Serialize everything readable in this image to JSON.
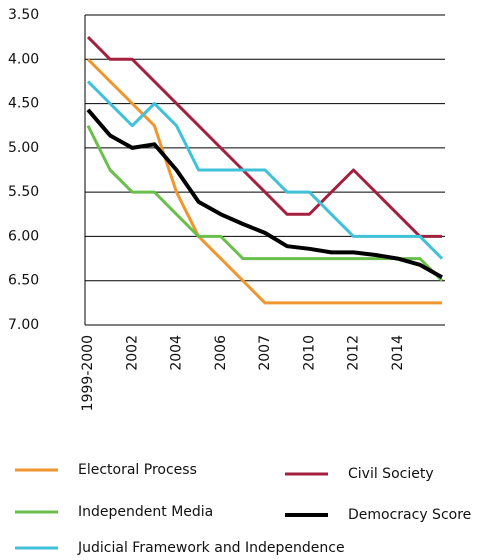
{
  "chart_data": {
    "type": "line",
    "categories": [
      "1999-2000",
      null,
      "2002",
      null,
      "2004",
      null,
      "2006",
      null,
      "2007",
      null,
      "2010",
      null,
      "2012",
      null,
      "2014",
      null,
      null
    ],
    "series": [
      {
        "name": "Electoral Process",
        "color": "#f0962e",
        "values": [
          4.0,
          4.25,
          4.5,
          4.75,
          5.5,
          6.0,
          6.25,
          6.5,
          6.75,
          6.75,
          6.75,
          6.75,
          6.75,
          6.75,
          6.75,
          6.75,
          6.75
        ]
      },
      {
        "name": "Civil Society",
        "color": "#a3203f",
        "values": [
          3.75,
          4.0,
          4.0,
          4.25,
          4.5,
          4.75,
          5.0,
          5.25,
          5.5,
          5.75,
          5.75,
          5.5,
          5.25,
          5.5,
          5.75,
          6.0,
          6.0
        ]
      },
      {
        "name": "Independent Media",
        "color": "#6abf4b",
        "values": [
          4.75,
          5.25,
          5.5,
          5.5,
          5.75,
          6.0,
          6.0,
          6.25,
          6.25,
          6.25,
          6.25,
          6.25,
          6.25,
          6.25,
          6.25,
          6.25,
          6.5
        ]
      },
      {
        "name": "Democracy Score",
        "color": "#000000",
        "values": [
          4.57,
          4.86,
          5.0,
          4.96,
          5.25,
          5.61,
          5.75,
          5.86,
          5.96,
          6.11,
          6.14,
          6.18,
          6.18,
          6.21,
          6.25,
          6.32,
          6.46
        ]
      },
      {
        "name": "Judicial Framework and Independence",
        "color": "#3fc1d8",
        "values": [
          4.25,
          4.5,
          4.75,
          4.5,
          4.75,
          5.25,
          5.25,
          5.25,
          5.25,
          5.5,
          5.5,
          5.75,
          6.0,
          6.0,
          6.0,
          6.0,
          6.25
        ]
      }
    ],
    "ylim": [
      3.5,
      7.0
    ],
    "y_inverted": true,
    "yticks": [
      {
        "value": 3.5,
        "label": "3.50"
      },
      {
        "value": 4.0,
        "label": "4.00"
      },
      {
        "value": 4.5,
        "label": "4.50"
      },
      {
        "value": 5.0,
        "label": "5.00"
      },
      {
        "value": 5.5,
        "label": "5.50"
      },
      {
        "value": 6.0,
        "label": "6.00"
      },
      {
        "value": 6.5,
        "label": "6.50"
      },
      {
        "value": 7.0,
        "label": "7.00"
      }
    ],
    "grid": true
  }
}
